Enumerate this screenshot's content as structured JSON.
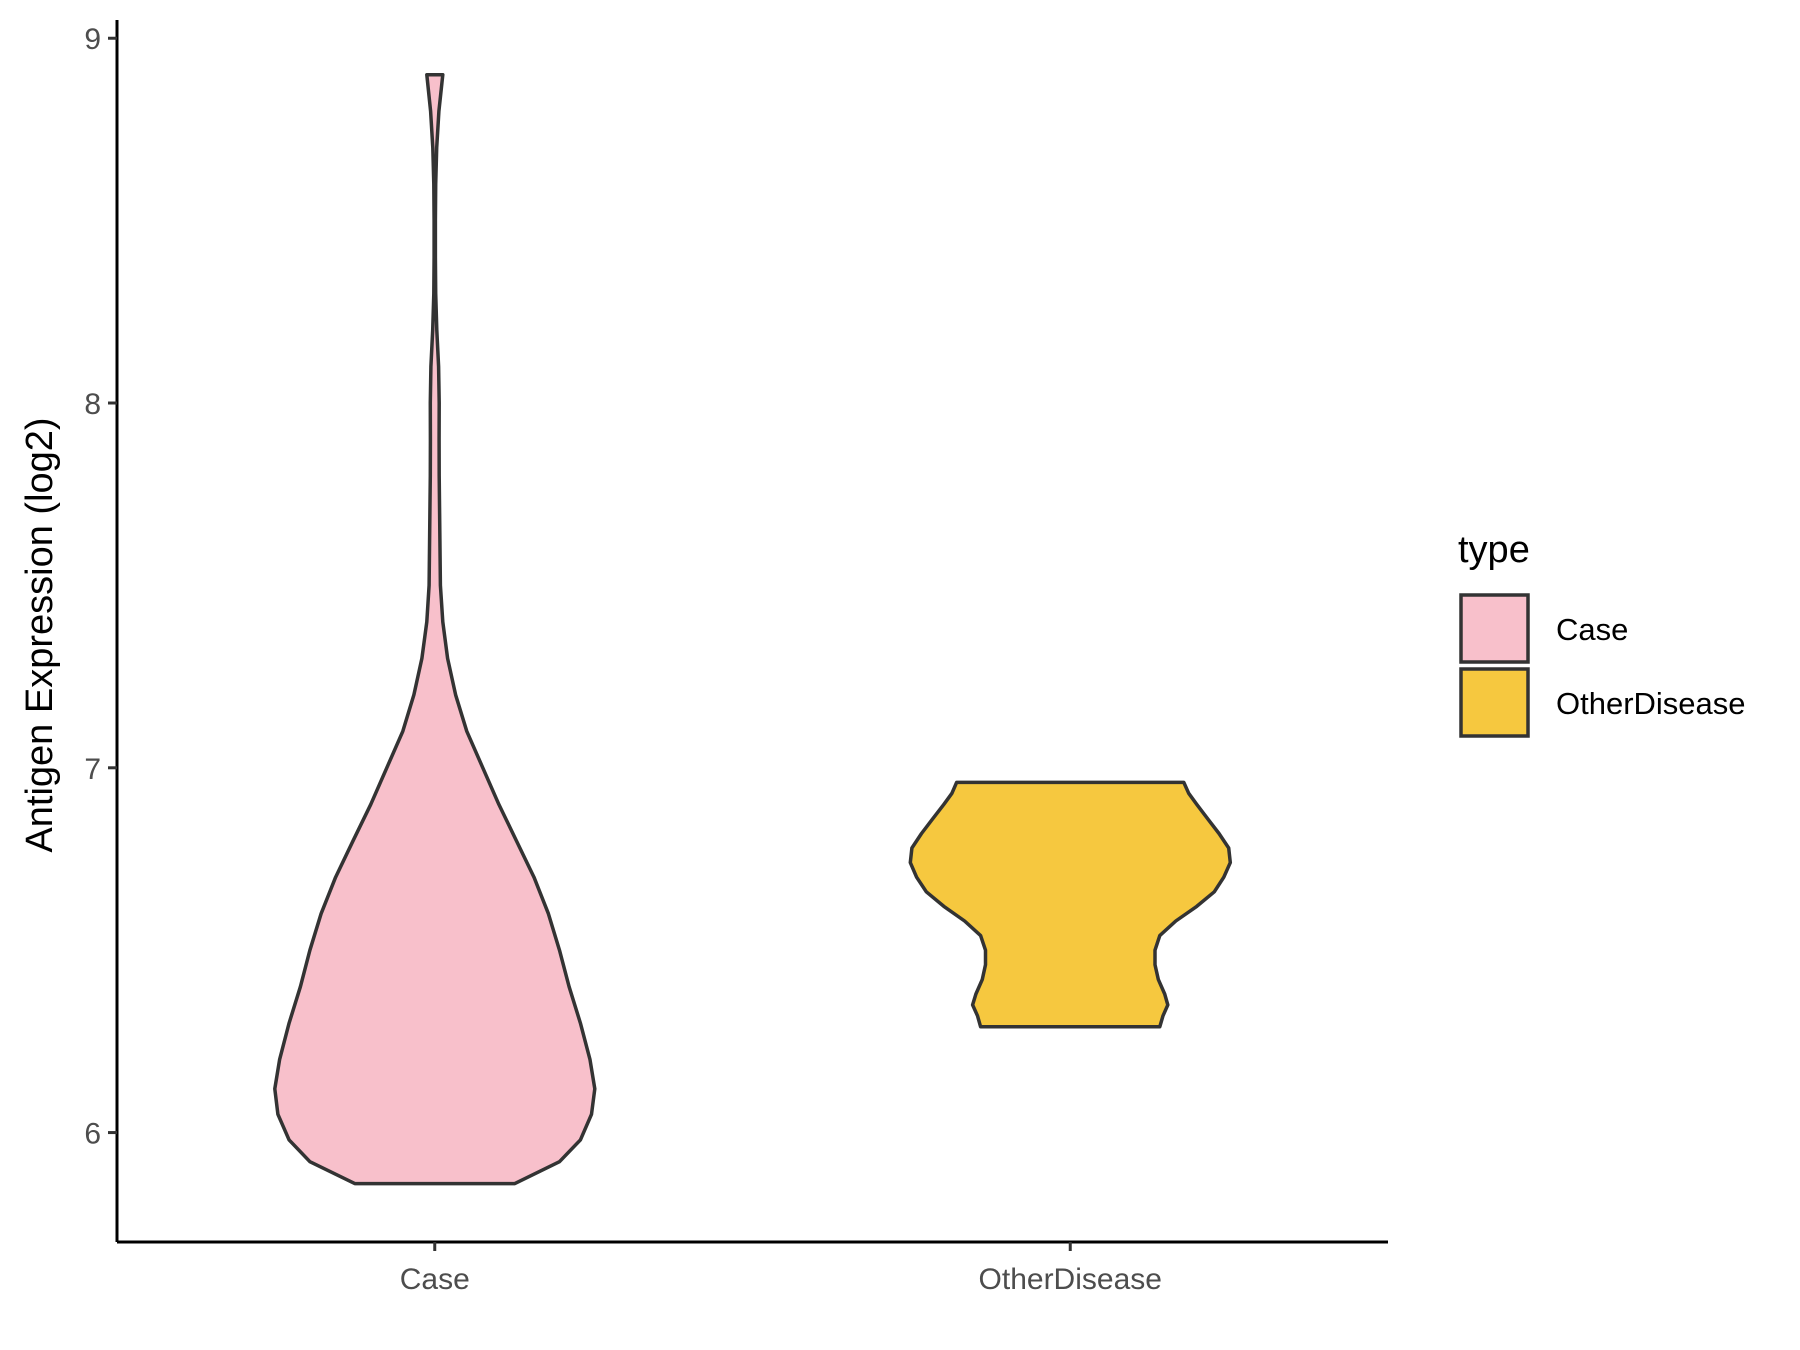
{
  "chart_data": {
    "type": "violin",
    "title": "",
    "xlabel": "",
    "ylabel": "Antigen Expression (log2)",
    "categories": [
      "Case",
      "OtherDisease"
    ],
    "ylim": [
      5.7,
      9.05
    ],
    "yticks": [
      6,
      7,
      8,
      9
    ],
    "grid": false,
    "legend": {
      "title": "type",
      "position": "right",
      "entries": [
        {
          "label": "Case",
          "color": "#f8c0cb"
        },
        {
          "label": "OtherDisease",
          "color": "#f6c83f"
        }
      ]
    },
    "series": [
      {
        "name": "Case",
        "color": "#f8c0cb",
        "range": [
          5.86,
          8.9
        ],
        "density": [
          [
            5.86,
            0.5
          ],
          [
            5.92,
            0.78
          ],
          [
            5.98,
            0.91
          ],
          [
            6.05,
            0.98
          ],
          [
            6.12,
            1.0
          ],
          [
            6.2,
            0.97
          ],
          [
            6.3,
            0.91
          ],
          [
            6.4,
            0.84
          ],
          [
            6.5,
            0.78
          ],
          [
            6.6,
            0.71
          ],
          [
            6.7,
            0.62
          ],
          [
            6.8,
            0.51
          ],
          [
            6.9,
            0.4
          ],
          [
            7.0,
            0.3
          ],
          [
            7.1,
            0.2
          ],
          [
            7.2,
            0.13
          ],
          [
            7.3,
            0.08
          ],
          [
            7.4,
            0.05
          ],
          [
            7.5,
            0.035
          ],
          [
            7.6,
            0.033
          ],
          [
            7.7,
            0.03
          ],
          [
            7.8,
            0.028
          ],
          [
            7.9,
            0.027
          ],
          [
            8.0,
            0.028
          ],
          [
            8.1,
            0.024
          ],
          [
            8.2,
            0.013
          ],
          [
            8.3,
            0.006
          ],
          [
            8.4,
            0.004
          ],
          [
            8.5,
            0.004
          ],
          [
            8.6,
            0.006
          ],
          [
            8.7,
            0.012
          ],
          [
            8.8,
            0.026
          ],
          [
            8.9,
            0.05
          ]
        ]
      },
      {
        "name": "OtherDisease",
        "color": "#f6c83f",
        "range": [
          6.29,
          6.96
        ],
        "density": [
          [
            6.29,
            0.56
          ],
          [
            6.32,
            0.58
          ],
          [
            6.35,
            0.61
          ],
          [
            6.38,
            0.59
          ],
          [
            6.42,
            0.55
          ],
          [
            6.46,
            0.53
          ],
          [
            6.5,
            0.53
          ],
          [
            6.54,
            0.56
          ],
          [
            6.58,
            0.66
          ],
          [
            6.62,
            0.79
          ],
          [
            6.66,
            0.9
          ],
          [
            6.7,
            0.96
          ],
          [
            6.74,
            1.0
          ],
          [
            6.78,
            0.99
          ],
          [
            6.82,
            0.93
          ],
          [
            6.86,
            0.86
          ],
          [
            6.9,
            0.79
          ],
          [
            6.93,
            0.74
          ],
          [
            6.96,
            0.71
          ]
        ]
      }
    ]
  }
}
